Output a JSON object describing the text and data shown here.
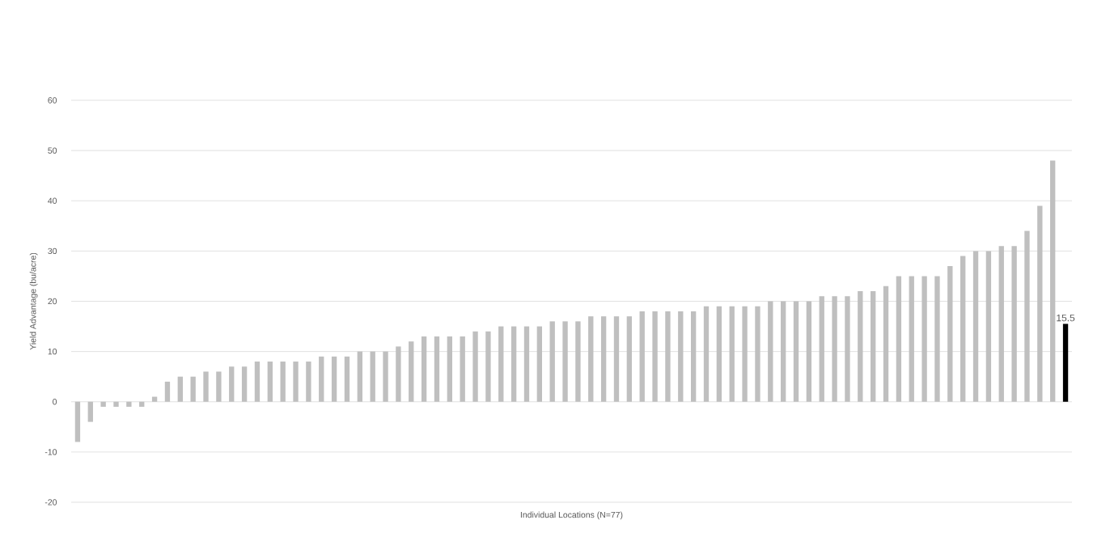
{
  "chart_data": {
    "type": "bar",
    "xlabel": "Individual Locations (N=77)",
    "ylabel": "Yield Advantage (bu/acre)",
    "categories": [
      null,
      null,
      null,
      null,
      null,
      null,
      null,
      null,
      null,
      null,
      null,
      null,
      null,
      null,
      null,
      null,
      null,
      null,
      null,
      null,
      null,
      null,
      null,
      null,
      null,
      null,
      null,
      null,
      null,
      null,
      null,
      null,
      null,
      null,
      null,
      null,
      null,
      null,
      null,
      null,
      null,
      null,
      null,
      null,
      null,
      null,
      null,
      null,
      null,
      null,
      null,
      null,
      null,
      null,
      null,
      null,
      null,
      null,
      null,
      null,
      null,
      null,
      null,
      null,
      null,
      null,
      null,
      null,
      null,
      null,
      null,
      null,
      null,
      null,
      null,
      null,
      null,
      null
    ],
    "values": [
      -8,
      -4,
      -1,
      -1,
      -1,
      -1,
      1,
      4,
      5,
      5,
      6,
      6,
      7,
      7,
      8,
      8,
      8,
      8,
      8,
      9,
      9,
      9,
      10,
      10,
      10,
      11,
      12,
      13,
      13,
      13,
      13,
      14,
      14,
      15,
      15,
      15,
      15,
      16,
      16,
      16,
      17,
      17,
      17,
      17,
      18,
      18,
      18,
      18,
      18,
      19,
      19,
      19,
      19,
      19,
      20,
      20,
      20,
      20,
      21,
      21,
      21,
      22,
      22,
      23,
      25,
      25,
      25,
      25,
      27,
      29,
      30,
      30,
      31,
      31,
      34,
      39,
      48,
      15.5
    ],
    "colors": [
      "#bfbfbf",
      "#bfbfbf",
      "#bfbfbf",
      "#bfbfbf",
      "#bfbfbf",
      "#bfbfbf",
      "#bfbfbf",
      "#bfbfbf",
      "#bfbfbf",
      "#bfbfbf",
      "#bfbfbf",
      "#bfbfbf",
      "#bfbfbf",
      "#bfbfbf",
      "#bfbfbf",
      "#bfbfbf",
      "#bfbfbf",
      "#bfbfbf",
      "#bfbfbf",
      "#bfbfbf",
      "#bfbfbf",
      "#bfbfbf",
      "#bfbfbf",
      "#bfbfbf",
      "#bfbfbf",
      "#bfbfbf",
      "#bfbfbf",
      "#bfbfbf",
      "#bfbfbf",
      "#bfbfbf",
      "#bfbfbf",
      "#bfbfbf",
      "#bfbfbf",
      "#bfbfbf",
      "#bfbfbf",
      "#bfbfbf",
      "#bfbfbf",
      "#bfbfbf",
      "#bfbfbf",
      "#bfbfbf",
      "#bfbfbf",
      "#bfbfbf",
      "#bfbfbf",
      "#bfbfbf",
      "#bfbfbf",
      "#bfbfbf",
      "#bfbfbf",
      "#bfbfbf",
      "#bfbfbf",
      "#bfbfbf",
      "#bfbfbf",
      "#bfbfbf",
      "#bfbfbf",
      "#bfbfbf",
      "#bfbfbf",
      "#bfbfbf",
      "#bfbfbf",
      "#bfbfbf",
      "#bfbfbf",
      "#bfbfbf",
      "#bfbfbf",
      "#bfbfbf",
      "#bfbfbf",
      "#bfbfbf",
      "#bfbfbf",
      "#bfbfbf",
      "#bfbfbf",
      "#bfbfbf",
      "#bfbfbf",
      "#bfbfbf",
      "#bfbfbf",
      "#bfbfbf",
      "#bfbfbf",
      "#bfbfbf",
      "#bfbfbf",
      "#bfbfbf",
      "#bfbfbf",
      "#000000"
    ],
    "value_labels": [
      null,
      null,
      null,
      null,
      null,
      null,
      null,
      null,
      null,
      null,
      null,
      null,
      null,
      null,
      null,
      null,
      null,
      null,
      null,
      null,
      null,
      null,
      null,
      null,
      null,
      null,
      null,
      null,
      null,
      null,
      null,
      null,
      null,
      null,
      null,
      null,
      null,
      null,
      null,
      null,
      null,
      null,
      null,
      null,
      null,
      null,
      null,
      null,
      null,
      null,
      null,
      null,
      null,
      null,
      null,
      null,
      null,
      null,
      null,
      null,
      null,
      null,
      null,
      null,
      null,
      null,
      null,
      null,
      null,
      null,
      null,
      null,
      null,
      null,
      null,
      null,
      null,
      "15.5"
    ],
    "ylim": [
      -20,
      60
    ],
    "yticks": [
      -20,
      -10,
      0,
      10,
      20,
      30,
      40,
      50,
      60
    ],
    "grid": "y"
  }
}
